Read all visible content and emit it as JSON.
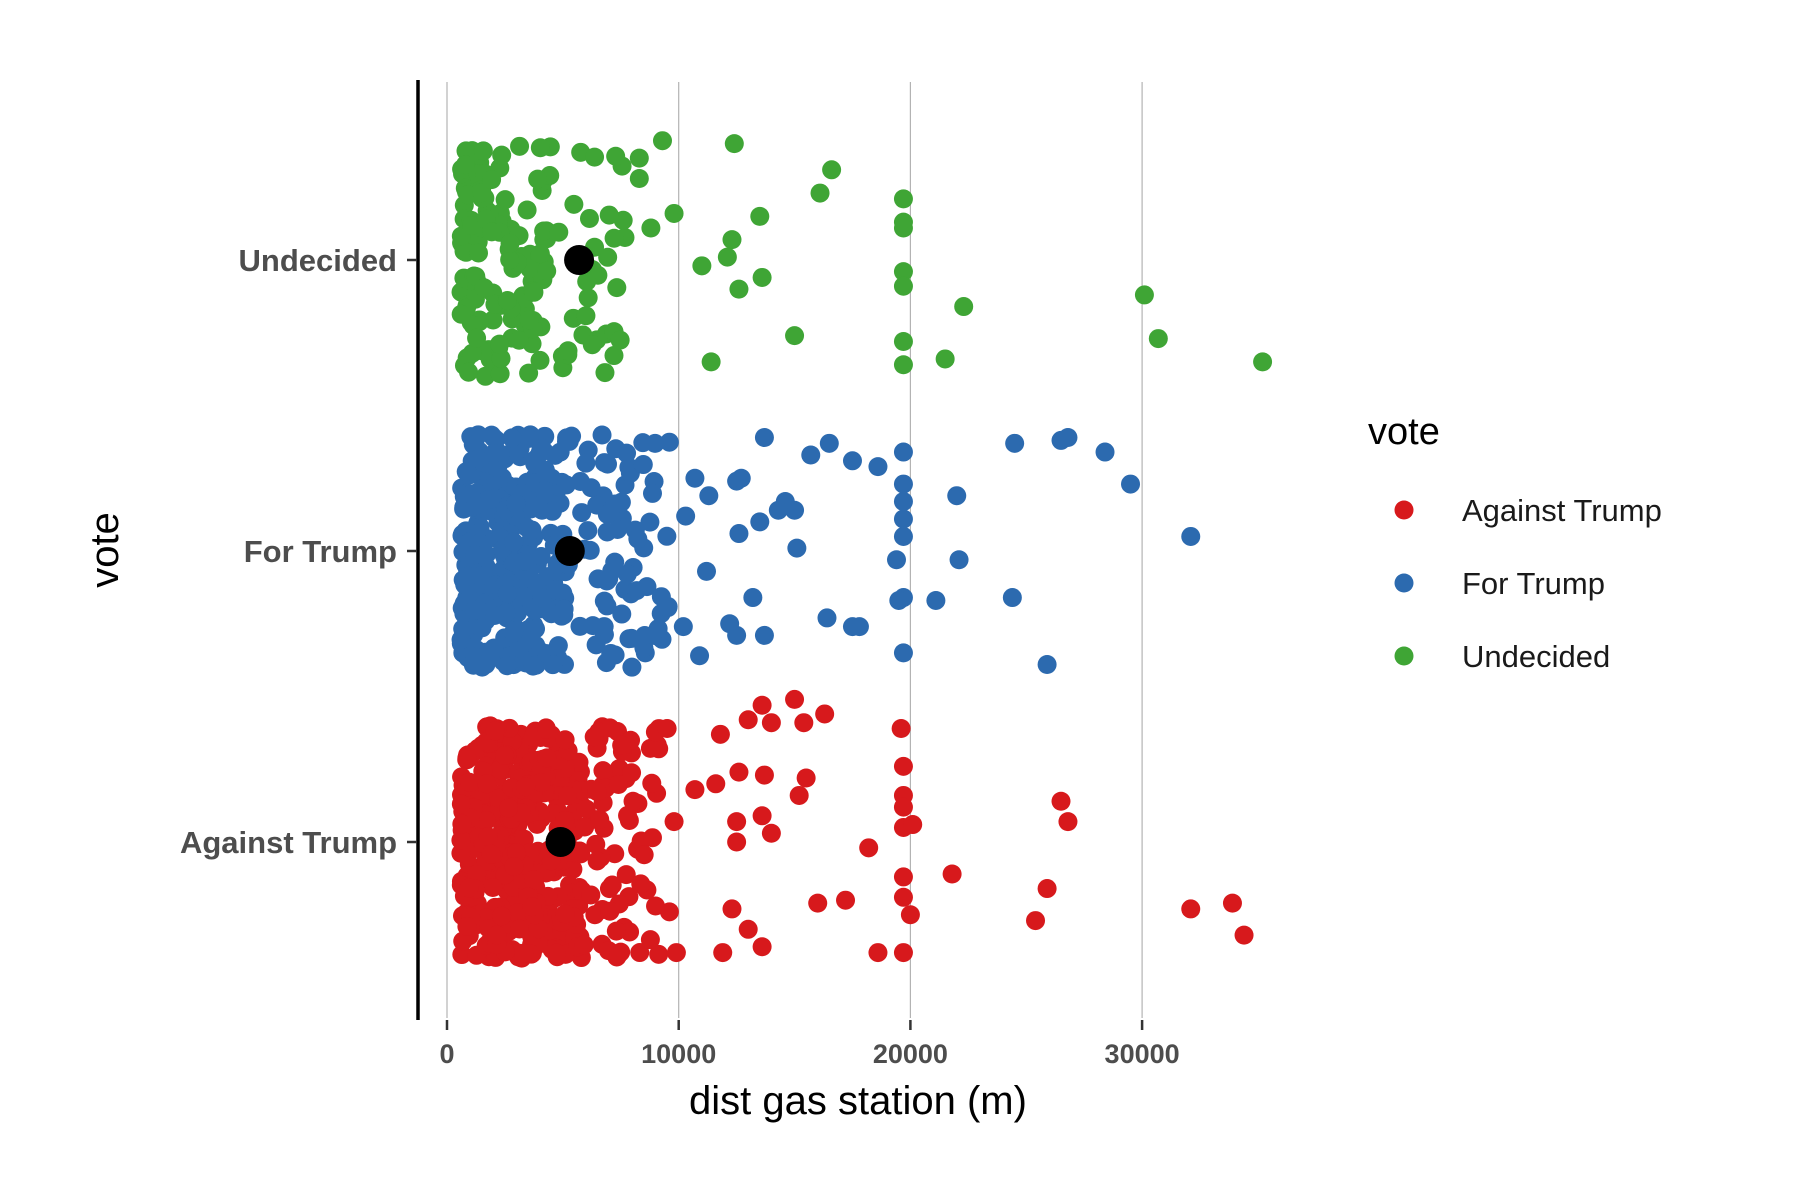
{
  "chart_data": {
    "type": "scatter",
    "subtype": "jitter strip plot with category means",
    "title": "",
    "xlabel": "dist gas station (m)",
    "ylabel": "vote",
    "xlim": [
      -1200,
      36500
    ],
    "x_ticks": [
      0,
      10000,
      20000,
      30000
    ],
    "x_tick_labels": [
      "0",
      "10000",
      "20000",
      "30000"
    ],
    "categories": [
      "Against Trump",
      "For Trump",
      "Undecided"
    ],
    "grid": "vertical major gridlines only",
    "legend": {
      "title": "vote",
      "position": "right",
      "entries": [
        {
          "label": "Against Trump",
          "color": "#D7191C"
        },
        {
          "label": "For Trump",
          "color": "#2C6AAF"
        },
        {
          "label": "Undecided",
          "color": "#3FA535"
        }
      ]
    },
    "mean_marker_color": "#000000",
    "series": [
      {
        "name": "Against Trump",
        "color": "#D7191C",
        "mean": 4900,
        "outliers": [
          {
            "x": 9500,
            "y": 0.39
          },
          {
            "x": 11800,
            "y": 0.37
          },
          {
            "x": 13000,
            "y": 0.42
          },
          {
            "x": 14000,
            "y": 0.41
          },
          {
            "x": 15400,
            "y": 0.41
          },
          {
            "x": 16300,
            "y": 0.44
          },
          {
            "x": 13600,
            "y": 0.47
          },
          {
            "x": 15000,
            "y": 0.49
          },
          {
            "x": 10700,
            "y": 0.18
          },
          {
            "x": 11600,
            "y": 0.2
          },
          {
            "x": 12600,
            "y": 0.24
          },
          {
            "x": 13700,
            "y": 0.23
          },
          {
            "x": 15200,
            "y": 0.16
          },
          {
            "x": 15500,
            "y": 0.22
          },
          {
            "x": 9800,
            "y": 0.07
          },
          {
            "x": 12500,
            "y": 0.07
          },
          {
            "x": 12500,
            "y": 0.0
          },
          {
            "x": 13600,
            "y": 0.09
          },
          {
            "x": 14000,
            "y": 0.03
          },
          {
            "x": 19600,
            "y": 0.39
          },
          {
            "x": 19700,
            "y": 0.26
          },
          {
            "x": 19700,
            "y": 0.16
          },
          {
            "x": 19700,
            "y": 0.12
          },
          {
            "x": 19700,
            "y": 0.05
          },
          {
            "x": 20100,
            "y": 0.06
          },
          {
            "x": 18200,
            "y": -0.02
          },
          {
            "x": 19700,
            "y": -0.12
          },
          {
            "x": 19700,
            "y": -0.19
          },
          {
            "x": 20000,
            "y": -0.25
          },
          {
            "x": 21800,
            "y": -0.11
          },
          {
            "x": 16000,
            "y": -0.21
          },
          {
            "x": 17200,
            "y": -0.2
          },
          {
            "x": 12300,
            "y": -0.23
          },
          {
            "x": 13000,
            "y": -0.3
          },
          {
            "x": 13600,
            "y": -0.36
          },
          {
            "x": 9600,
            "y": -0.24
          },
          {
            "x": 9000,
            "y": -0.22
          },
          {
            "x": 9900,
            "y": -0.38
          },
          {
            "x": 11900,
            "y": -0.38
          },
          {
            "x": 18600,
            "y": -0.38
          },
          {
            "x": 19700,
            "y": -0.38
          },
          {
            "x": 26500,
            "y": 0.14
          },
          {
            "x": 26800,
            "y": 0.07
          },
          {
            "x": 25900,
            "y": -0.16
          },
          {
            "x": 25400,
            "y": -0.27
          },
          {
            "x": 32100,
            "y": -0.23
          },
          {
            "x": 33900,
            "y": -0.21
          },
          {
            "x": 34400,
            "y": -0.32
          }
        ]
      },
      {
        "name": "For Trump",
        "color": "#2C6AAF",
        "mean": 5300,
        "outliers": [
          {
            "x": 13700,
            "y": 0.39
          },
          {
            "x": 16500,
            "y": 0.37
          },
          {
            "x": 15700,
            "y": 0.33
          },
          {
            "x": 17500,
            "y": 0.31
          },
          {
            "x": 18600,
            "y": 0.29
          },
          {
            "x": 19700,
            "y": 0.34
          },
          {
            "x": 19700,
            "y": 0.23
          },
          {
            "x": 19700,
            "y": 0.17
          },
          {
            "x": 19700,
            "y": 0.11
          },
          {
            "x": 19700,
            "y": 0.05
          },
          {
            "x": 22000,
            "y": 0.19
          },
          {
            "x": 24500,
            "y": 0.37
          },
          {
            "x": 26500,
            "y": 0.38
          },
          {
            "x": 26800,
            "y": 0.39
          },
          {
            "x": 28400,
            "y": 0.34
          },
          {
            "x": 29500,
            "y": 0.23
          },
          {
            "x": 32100,
            "y": 0.05
          },
          {
            "x": 22100,
            "y": -0.03
          },
          {
            "x": 24400,
            "y": -0.16
          },
          {
            "x": 25900,
            "y": -0.39
          },
          {
            "x": 21100,
            "y": -0.17
          },
          {
            "x": 19700,
            "y": -0.16
          },
          {
            "x": 19500,
            "y": -0.17
          },
          {
            "x": 19400,
            "y": -0.03
          },
          {
            "x": 19700,
            "y": -0.35
          },
          {
            "x": 16400,
            "y": -0.23
          },
          {
            "x": 17500,
            "y": -0.26
          },
          {
            "x": 17800,
            "y": -0.26
          },
          {
            "x": 15100,
            "y": 0.01
          },
          {
            "x": 15000,
            "y": 0.14
          },
          {
            "x": 14600,
            "y": 0.17
          },
          {
            "x": 14300,
            "y": 0.14
          },
          {
            "x": 13500,
            "y": 0.1
          },
          {
            "x": 12600,
            "y": 0.06
          },
          {
            "x": 12500,
            "y": 0.24
          },
          {
            "x": 12700,
            "y": 0.25
          },
          {
            "x": 11300,
            "y": 0.19
          },
          {
            "x": 10700,
            "y": 0.25
          },
          {
            "x": 10300,
            "y": 0.12
          },
          {
            "x": 11200,
            "y": -0.07
          },
          {
            "x": 13200,
            "y": -0.16
          },
          {
            "x": 12200,
            "y": -0.25
          },
          {
            "x": 12500,
            "y": -0.29
          },
          {
            "x": 13700,
            "y": -0.29
          },
          {
            "x": 10900,
            "y": -0.36
          },
          {
            "x": 10200,
            "y": -0.26
          }
        ]
      },
      {
        "name": "Undecided",
        "color": "#3FA535",
        "mean": 5700,
        "outliers": [
          {
            "x": 9300,
            "y": 0.41
          },
          {
            "x": 12400,
            "y": 0.4
          },
          {
            "x": 8300,
            "y": 0.35
          },
          {
            "x": 8300,
            "y": 0.28
          },
          {
            "x": 9800,
            "y": 0.16
          },
          {
            "x": 8800,
            "y": 0.11
          },
          {
            "x": 16600,
            "y": 0.31
          },
          {
            "x": 16100,
            "y": 0.23
          },
          {
            "x": 13500,
            "y": 0.15
          },
          {
            "x": 12300,
            "y": 0.07
          },
          {
            "x": 12100,
            "y": 0.01
          },
          {
            "x": 11000,
            "y": -0.02
          },
          {
            "x": 13600,
            "y": -0.06
          },
          {
            "x": 12600,
            "y": -0.1
          },
          {
            "x": 15000,
            "y": -0.26
          },
          {
            "x": 11400,
            "y": -0.35
          },
          {
            "x": 19700,
            "y": 0.21
          },
          {
            "x": 19700,
            "y": 0.13
          },
          {
            "x": 19700,
            "y": 0.11
          },
          {
            "x": 19700,
            "y": -0.04
          },
          {
            "x": 19700,
            "y": -0.09
          },
          {
            "x": 19700,
            "y": -0.28
          },
          {
            "x": 19700,
            "y": -0.36
          },
          {
            "x": 21500,
            "y": -0.34
          },
          {
            "x": 22300,
            "y": -0.16
          },
          {
            "x": 30100,
            "y": -0.12
          },
          {
            "x": 30700,
            "y": -0.27
          },
          {
            "x": 35200,
            "y": -0.35
          }
        ]
      }
    ]
  }
}
